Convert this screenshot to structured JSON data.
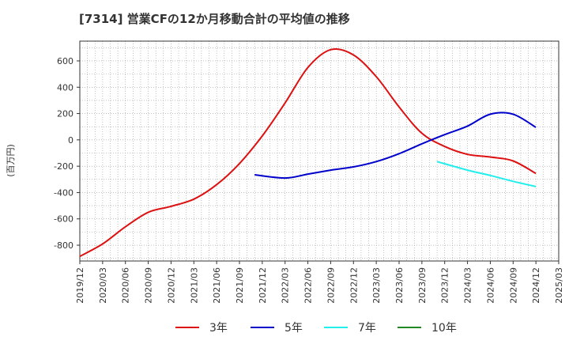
{
  "chart_data": {
    "type": "line",
    "title": "[7314]  営業CFの12か月移動合計の平均値の推移",
    "ylabel": "(百万円)",
    "xlabel": "",
    "ylim": [
      -920,
      750
    ],
    "y_ticks": [
      600,
      400,
      200,
      0,
      -200,
      -400,
      -600,
      -800
    ],
    "x_tick_labels": [
      "2019/12",
      "2020/03",
      "2020/06",
      "2020/09",
      "2020/12",
      "2021/03",
      "2021/06",
      "2021/09",
      "2021/12",
      "2022/03",
      "2022/06",
      "2022/09",
      "2022/12",
      "2023/03",
      "2023/06",
      "2023/09",
      "2023/12",
      "2024/03",
      "2024/06",
      "2024/09",
      "2024/12",
      "2025/03"
    ],
    "grid": true,
    "legend_position": "bottom",
    "series": [
      {
        "name": "3年",
        "color": "#dd1111",
        "x": [
          "2019/12",
          "2020/03",
          "2020/06",
          "2020/09",
          "2020/12",
          "2021/03",
          "2021/06",
          "2021/09",
          "2021/12",
          "2022/03",
          "2022/06",
          "2022/09",
          "2022/12",
          "2023/03",
          "2023/06",
          "2023/09",
          "2023/12",
          "2024/03",
          "2024/06",
          "2024/09",
          "2024/12"
        ],
        "values": [
          -885,
          -790,
          -660,
          -550,
          -505,
          -450,
          -340,
          -180,
          30,
          280,
          550,
          685,
          645,
          480,
          250,
          50,
          -50,
          -110,
          -130,
          -160,
          -255
        ]
      },
      {
        "name": "5年",
        "color": "#0000cc",
        "x": [
          "2021/11",
          "2022/03",
          "2022/06",
          "2022/09",
          "2022/12",
          "2023/03",
          "2023/06",
          "2023/09",
          "2023/12",
          "2024/03",
          "2024/06",
          "2024/09",
          "2024/12"
        ],
        "values": [
          -265,
          -290,
          -260,
          -230,
          -205,
          -165,
          -105,
          -30,
          40,
          105,
          195,
          195,
          95
        ]
      },
      {
        "name": "7年",
        "color": "#22eeee",
        "x": [
          "2023/11",
          "2024/03",
          "2024/06",
          "2024/09",
          "2024/12"
        ],
        "values": [
          -165,
          -230,
          -270,
          -315,
          -355
        ]
      },
      {
        "name": "10年",
        "color": "#228822",
        "x": [],
        "values": []
      }
    ]
  }
}
